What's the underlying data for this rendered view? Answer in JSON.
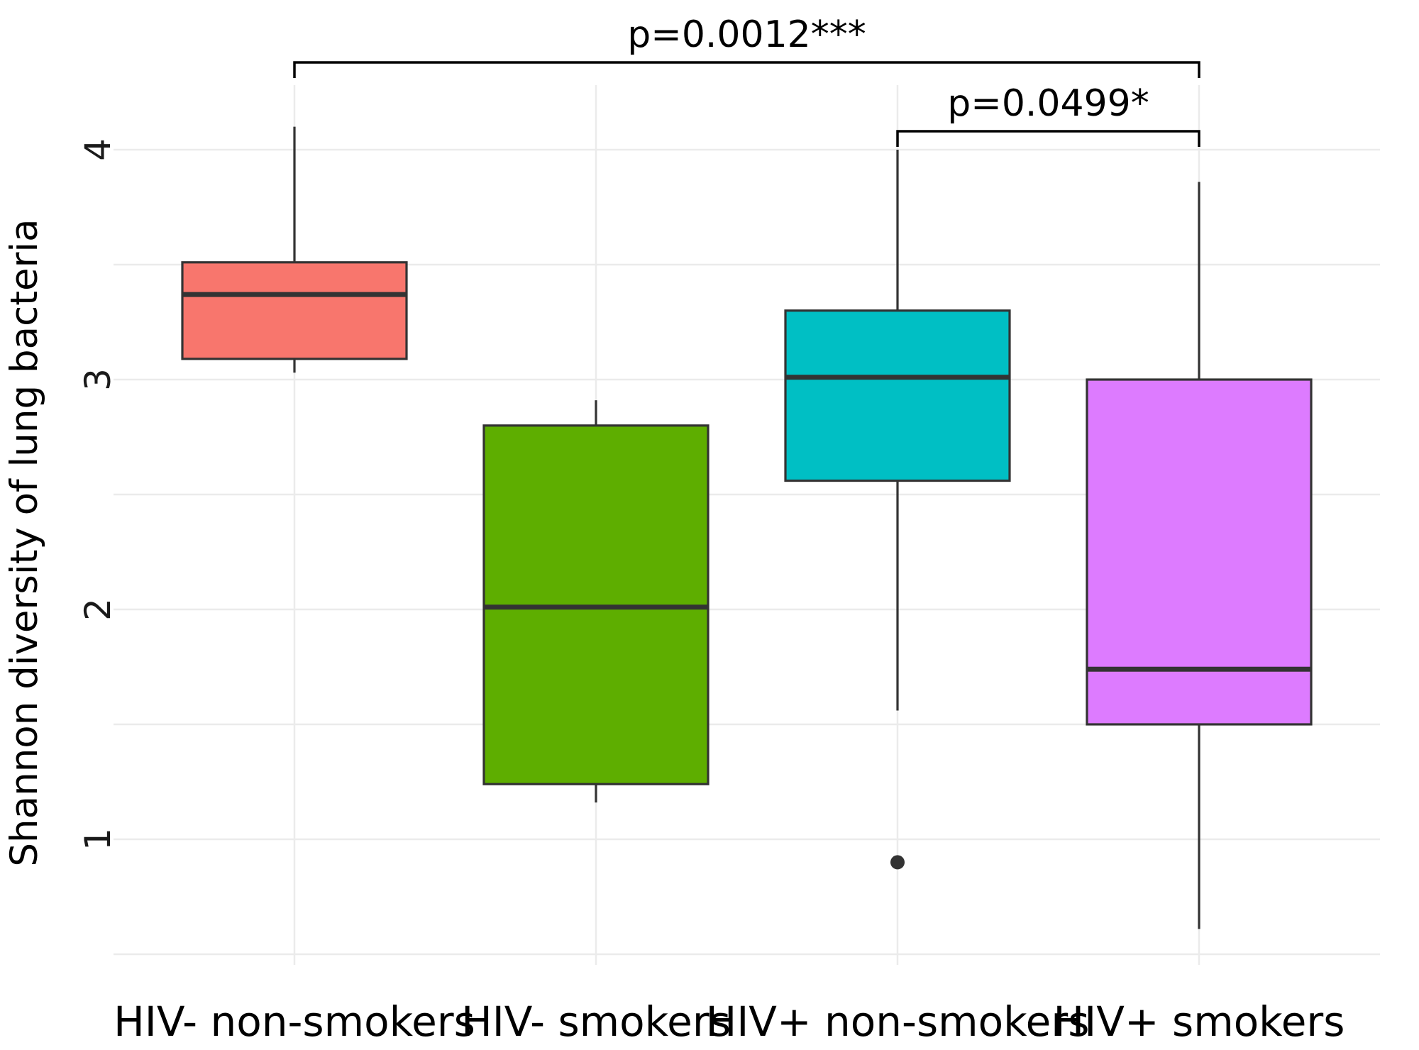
{
  "chart_data": {
    "type": "boxplot",
    "ylabel": "Shannon diversity of lung bacteria",
    "xlabel": "",
    "ylim": [
      0.5,
      4.25
    ],
    "yticks": [
      1,
      2,
      3,
      4
    ],
    "grid": true,
    "categories": [
      "HIV- non-smokers",
      "HIV- smokers",
      "HIV+ non-smokers",
      "HIV+ smokers"
    ],
    "boxes": [
      {
        "category": "HIV- non-smokers",
        "min": 3.03,
        "q1": 3.09,
        "median": 3.37,
        "q3": 3.51,
        "max": 4.1,
        "outliers": [],
        "color": "#F8766D"
      },
      {
        "category": "HIV- smokers",
        "min": 1.16,
        "q1": 1.24,
        "median": 2.01,
        "q3": 2.8,
        "max": 2.91,
        "outliers": [],
        "color": "#5EAE00"
      },
      {
        "category": "HIV+ non-smokers",
        "min": 1.56,
        "q1": 2.56,
        "median": 3.01,
        "q3": 3.3,
        "max": 4.0,
        "outliers": [
          0.9
        ],
        "color": "#00BFC4"
      },
      {
        "category": "HIV+ smokers",
        "min": 0.61,
        "q1": 1.5,
        "median": 1.74,
        "q3": 3.0,
        "max": 3.86,
        "outliers": [],
        "color": "#DD7BFF"
      }
    ],
    "annotations": [
      {
        "from": "HIV- non-smokers",
        "to": "HIV+ smokers",
        "text": "p=0.0012***"
      },
      {
        "from": "HIV+ non-smokers",
        "to": "HIV+ smokers",
        "text": "p=0.0499*"
      }
    ]
  }
}
